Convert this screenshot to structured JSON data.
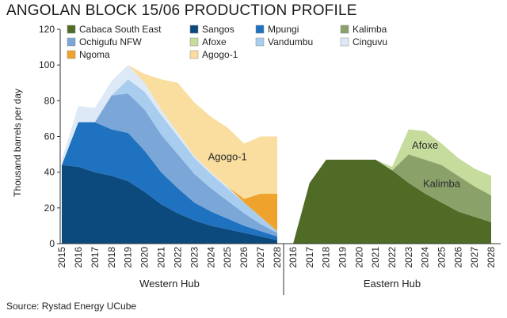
{
  "title": "ANGOLAN BLOCK 15/06 PRODUCTION PROFILE",
  "source": "Source: Rystad Energy UCube",
  "chart_data": {
    "type": "area",
    "stacked": true,
    "ylabel": "Thousand barrels per day",
    "ylim": [
      0,
      120
    ],
    "yticks": [
      "0",
      "20",
      "40",
      "60",
      "80",
      "100",
      "120"
    ],
    "grid": false,
    "legend_position": "top-left",
    "groups": [
      {
        "name": "Western Hub",
        "x": [
          "2015",
          "2016",
          "2017",
          "2018",
          "2019",
          "2020",
          "2021",
          "2022",
          "2023",
          "2024",
          "2025",
          "2026",
          "2027",
          "2028"
        ],
        "series": [
          {
            "name": "Sangos",
            "color": "#0c4a7e",
            "values": [
              44,
              43,
              40,
              38,
              35,
              29,
              22,
              17,
              13,
              10,
              8,
              6,
              4,
              2
            ]
          },
          {
            "name": "Mpungi",
            "color": "#1f72bf",
            "values": [
              0,
              25,
              28,
              26,
              27,
              23,
              18,
              14,
              10,
              8,
              6,
              4,
              3,
              2
            ]
          },
          {
            "name": "Ochigufu NFW",
            "color": "#7aa7d8",
            "values": [
              0,
              0,
              0,
              19,
              22,
              23,
              21,
              19,
              16,
              13,
              10,
              7,
              4,
              2
            ]
          },
          {
            "name": "Vandumbu",
            "color": "#a9cdee",
            "values": [
              0,
              0,
              0,
              0,
              8,
              10,
              11,
              10,
              9,
              8,
              7,
              6,
              4,
              1
            ]
          },
          {
            "name": "Cinguvu",
            "color": "#dde9f6",
            "values": [
              3,
              9,
              8,
              8,
              8,
              5,
              3,
              2,
              1,
              1,
              1,
              0,
              0,
              0
            ]
          },
          {
            "name": "Ngoma",
            "color": "#f0a32c",
            "values": [
              0,
              0,
              0,
              0,
              0,
              0,
              0,
              0,
              0,
              0,
              0,
              2,
              13,
              21
            ]
          },
          {
            "name": "Agogo-1",
            "color": "#f9dea0",
            "values": [
              0,
              0,
              0,
              0,
              0,
              5,
              17,
              28,
              30,
              31,
              33,
              31,
              32,
              32
            ]
          }
        ],
        "annotations": [
          {
            "text": "Agogo-1",
            "series": "Agogo-1"
          }
        ]
      },
      {
        "name": "Eastern Hub",
        "x": [
          "2016",
          "2017",
          "2018",
          "2019",
          "2020",
          "2021",
          "2022",
          "2023",
          "2024",
          "2025",
          "2026",
          "2027",
          "2028"
        ],
        "series": [
          {
            "name": "Cabaca South East",
            "color": "#4f6b25",
            "values": [
              0,
              34,
              47,
              47,
              47,
              47,
              41,
              34,
              28,
              23,
              18,
              15,
              12
            ]
          },
          {
            "name": "Kalimba",
            "color": "#8aa26a",
            "values": [
              0,
              0,
              0,
              0,
              0,
              0,
              0,
              16,
              19,
              21,
              20,
              17,
              15
            ]
          },
          {
            "name": "Afoxe",
            "color": "#c5dc9c",
            "values": [
              0,
              0,
              0,
              0,
              0,
              0,
              2,
              14,
              16,
              12,
              10,
              10,
              11
            ]
          }
        ],
        "annotations": [
          {
            "text": "Afoxe",
            "series": "Afoxe"
          },
          {
            "text": "Kalimba",
            "series": "Kalimba"
          }
        ]
      }
    ],
    "legend": [
      {
        "name": "Cabaca South East",
        "color": "#4f6b25"
      },
      {
        "name": "Sangos",
        "color": "#0c4a7e"
      },
      {
        "name": "Mpungi",
        "color": "#1f72bf"
      },
      {
        "name": "Kalimba",
        "color": "#8aa26a"
      },
      {
        "name": "Ochigufu NFW",
        "color": "#7aa7d8"
      },
      {
        "name": "Afoxe",
        "color": "#c5dc9c"
      },
      {
        "name": "Vandumbu",
        "color": "#a9cdee"
      },
      {
        "name": "Cinguvu",
        "color": "#dde9f6"
      },
      {
        "name": "Ngoma",
        "color": "#f0a32c"
      },
      {
        "name": "Agogo-1",
        "color": "#f9dea0"
      }
    ]
  }
}
